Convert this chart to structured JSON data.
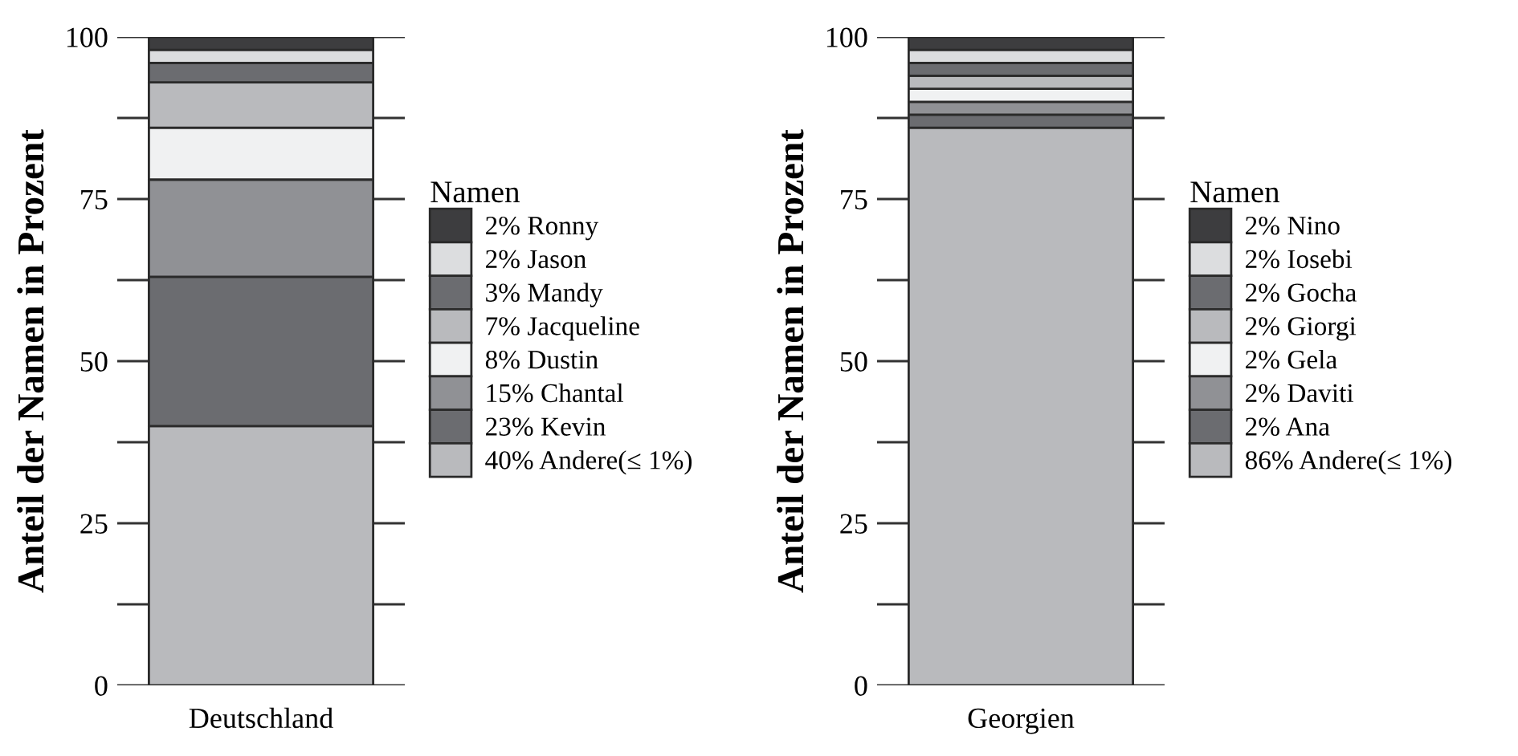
{
  "chart_data": [
    {
      "type": "bar",
      "stacked": true,
      "categories": [
        "Deutschland"
      ],
      "ylabel": "Anteil der Namen in Prozent",
      "legend_title": "Namen",
      "legend": "right",
      "grid": "y",
      "ylim": [
        0,
        100
      ],
      "yticks": [
        0,
        {
          "value": 12.5,
          "label": null
        },
        25,
        {
          "value": 37.5,
          "label": null
        },
        50,
        {
          "value": 62.5,
          "label": null
        },
        75,
        {
          "value": 87.5,
          "label": null
        },
        100
      ],
      "series": [
        {
          "name": "40% Andere(≤ 1%)",
          "color": "#b9babd",
          "values": [
            40
          ]
        },
        {
          "name": "23% Kevin",
          "color": "#6b6c70",
          "values": [
            23
          ]
        },
        {
          "name": "15% Chantal",
          "color": "#909195",
          "values": [
            15
          ]
        },
        {
          "name": "8% Dustin",
          "color": "#f0f1f2",
          "values": [
            8
          ]
        },
        {
          "name": "7% Jacqueline",
          "color": "#b9babd",
          "values": [
            7
          ]
        },
        {
          "name": "3% Mandy",
          "color": "#6b6c70",
          "values": [
            3
          ]
        },
        {
          "name": "2% Jason",
          "color": "#dcdddf",
          "values": [
            2
          ]
        },
        {
          "name": "2% Ronny",
          "color": "#3d3d3f",
          "values": [
            2
          ]
        }
      ]
    },
    {
      "type": "bar",
      "stacked": true,
      "categories": [
        "Georgien"
      ],
      "ylabel": "Anteil der Namen in Prozent",
      "legend_title": "Namen",
      "legend": "right",
      "grid": "y",
      "ylim": [
        0,
        100
      ],
      "yticks": [
        0,
        {
          "value": 12.5,
          "label": null
        },
        25,
        {
          "value": 37.5,
          "label": null
        },
        50,
        {
          "value": 62.5,
          "label": null
        },
        75,
        {
          "value": 87.5,
          "label": null
        },
        100
      ],
      "series": [
        {
          "name": "86% Andere(≤ 1%)",
          "color": "#b9babd",
          "values": [
            86
          ]
        },
        {
          "name": "2% Ana",
          "color": "#6b6c70",
          "values": [
            2
          ]
        },
        {
          "name": "2% Daviti",
          "color": "#909195",
          "values": [
            2
          ]
        },
        {
          "name": "2% Gela",
          "color": "#f0f1f2",
          "values": [
            2
          ]
        },
        {
          "name": "2% Giorgi",
          "color": "#b9babd",
          "values": [
            2
          ]
        },
        {
          "name": "2% Gocha",
          "color": "#6b6c70",
          "values": [
            2
          ]
        },
        {
          "name": "2% Iosebi",
          "color": "#dcdddf",
          "values": [
            2
          ]
        },
        {
          "name": "2% Nino",
          "color": "#3d3d3f",
          "values": [
            2
          ]
        }
      ]
    }
  ]
}
